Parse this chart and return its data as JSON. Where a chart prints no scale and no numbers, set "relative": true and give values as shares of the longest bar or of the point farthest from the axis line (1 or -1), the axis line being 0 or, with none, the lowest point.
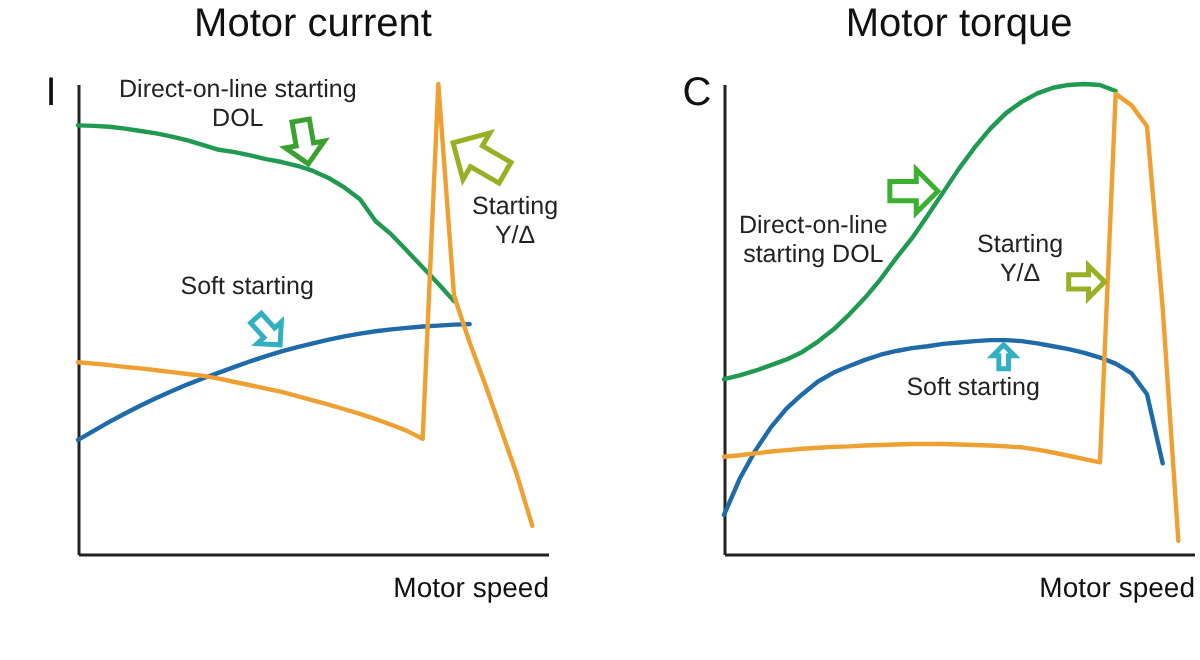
{
  "chart_data": [
    {
      "type": "line",
      "title": "Motor current",
      "xlabel": "Motor speed",
      "ylabel": "I",
      "relative": true,
      "categories": [
        null,
        null,
        null,
        null,
        null,
        null,
        null,
        null,
        null,
        null,
        null,
        null,
        null,
        null,
        null,
        null,
        null,
        null,
        null,
        null,
        null,
        null,
        null,
        null,
        null,
        null,
        null,
        null,
        null,
        null,
        null
      ],
      "series": [
        {
          "name": "Direct-on-line starting DOL",
          "color": "#1f9a50",
          "values": [
            0.912,
            0.911,
            0.909,
            0.905,
            0.9,
            0.895,
            0.888,
            0.88,
            0.87,
            0.86,
            0.855,
            0.848,
            0.84,
            0.834,
            0.826,
            0.815,
            0.8,
            0.78,
            0.755,
            0.708,
            0.68,
            0.645,
            0.61,
            0.575,
            0.538,
            null,
            null,
            null,
            null,
            null,
            null
          ]
        },
        {
          "name": "Soft starting",
          "color": "#1f6aa8",
          "values": [
            0.243,
            0.262,
            0.281,
            0.299,
            0.316,
            0.332,
            0.347,
            0.361,
            0.374,
            0.386,
            0.398,
            0.41,
            0.421,
            0.431,
            0.44,
            0.448,
            0.456,
            0.463,
            0.469,
            0.474,
            0.478,
            0.481,
            0.484,
            0.486,
            0.488,
            0.489,
            null,
            null,
            null,
            null,
            null
          ]
        },
        {
          "name": "Starting Y/Δ",
          "color": "#eea032",
          "values": [
            0.408,
            0.405,
            0.402,
            0.398,
            0.395,
            0.391,
            0.387,
            0.383,
            0.379,
            0.373,
            0.366,
            0.359,
            0.352,
            0.345,
            0.336,
            0.327,
            0.318,
            0.308,
            0.298,
            0.287,
            0.275,
            0.262,
            0.245,
            1,
            0.55,
            0.45,
            0.36,
            0.265,
            0.17,
            0.06,
            null
          ]
        }
      ]
    },
    {
      "type": "line",
      "title": "Motor torque",
      "xlabel": "Motor speed",
      "ylabel": "C",
      "relative": true,
      "categories": [
        null,
        null,
        null,
        null,
        null,
        null,
        null,
        null,
        null,
        null,
        null,
        null,
        null,
        null,
        null,
        null,
        null,
        null,
        null,
        null,
        null,
        null,
        null,
        null,
        null,
        null,
        null,
        null,
        null,
        null,
        null
      ],
      "series": [
        {
          "name": "Direct-on-line starting DOL",
          "color": "#1f9a50",
          "values": [
            0.372,
            0.38,
            0.39,
            0.402,
            0.414,
            0.43,
            0.452,
            0.478,
            0.51,
            0.545,
            0.585,
            0.63,
            0.672,
            0.72,
            0.77,
            0.82,
            0.865,
            0.905,
            0.938,
            0.962,
            0.98,
            0.992,
            0.998,
            1,
            0.998,
            0.985,
            null,
            null,
            null,
            null,
            null
          ]
        },
        {
          "name": "Soft starting",
          "color": "#1f6aa8",
          "values": [
            0.083,
            0.16,
            0.22,
            0.27,
            0.31,
            0.34,
            0.367,
            0.386,
            0.4,
            0.413,
            0.424,
            0.432,
            0.438,
            0.442,
            0.447,
            0.45,
            0.453,
            0.455,
            0.455,
            0.453,
            0.448,
            0.442,
            0.436,
            0.428,
            0.418,
            0.405,
            0.385,
            0.34,
            0.193,
            null,
            null
          ]
        },
        {
          "name": "Starting Y/Δ",
          "color": "#eea032",
          "values": [
            0.207,
            0.21,
            0.214,
            0.218,
            0.221,
            0.224,
            0.226,
            0.228,
            0.229,
            0.231,
            0.232,
            0.233,
            0.234,
            0.234,
            0.234,
            0.233,
            0.232,
            0.231,
            0.229,
            0.227,
            0.222,
            0.216,
            0.209,
            0.202,
            0.195,
            0.979,
            0.955,
            0.91,
            0.524,
            0.028,
            null
          ]
        }
      ]
    }
  ]
}
